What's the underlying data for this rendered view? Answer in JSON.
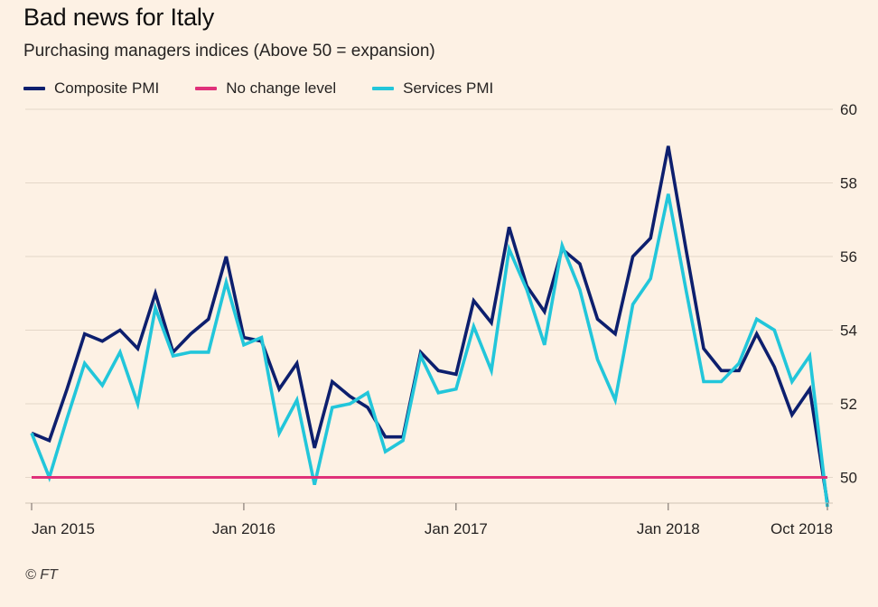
{
  "header": {
    "title": "Bad news for Italy",
    "subtitle": "Purchasing managers indices (Above 50 = expansion)"
  },
  "source": "© FT",
  "colors": {
    "background": "#fdf1e4",
    "composite": "#0d1f6e",
    "services": "#22c6da",
    "no_change": "#e0317a",
    "grid": "#e4d7c8"
  },
  "chart_data": {
    "type": "line",
    "title": "Bad news for Italy",
    "subtitle": "Purchasing managers indices (Above 50 = expansion)",
    "ylim": [
      49.3,
      60
    ],
    "y_ticks": [
      50,
      52,
      54,
      56,
      58,
      60
    ],
    "y_axis_side": "right",
    "grid": true,
    "legend_position": "top-left",
    "x_ticks": [
      {
        "index": 0,
        "label": "Jan 2015"
      },
      {
        "index": 12,
        "label": "Jan 2016"
      },
      {
        "index": 24,
        "label": "Jan 2017"
      },
      {
        "index": 36,
        "label": "Jan 2018"
      },
      {
        "index": 45,
        "label": "Oct 2018"
      }
    ],
    "x": [
      "2015-01",
      "2015-02",
      "2015-03",
      "2015-04",
      "2015-05",
      "2015-06",
      "2015-07",
      "2015-08",
      "2015-09",
      "2015-10",
      "2015-11",
      "2015-12",
      "2016-01",
      "2016-02",
      "2016-03",
      "2016-04",
      "2016-05",
      "2016-06",
      "2016-07",
      "2016-08",
      "2016-09",
      "2016-10",
      "2016-11",
      "2016-12",
      "2017-01",
      "2017-02",
      "2017-03",
      "2017-04",
      "2017-05",
      "2017-06",
      "2017-07",
      "2017-08",
      "2017-09",
      "2017-10",
      "2017-11",
      "2017-12",
      "2018-01",
      "2018-02",
      "2018-03",
      "2018-04",
      "2018-05",
      "2018-06",
      "2018-07",
      "2018-08",
      "2018-09",
      "2018-10"
    ],
    "series": [
      {
        "name": "Composite PMI",
        "color": "#0d1f6e",
        "values": [
          51.2,
          51.0,
          52.4,
          53.9,
          53.7,
          54.0,
          53.5,
          55.0,
          53.4,
          53.9,
          54.3,
          56.0,
          53.8,
          53.7,
          52.4,
          53.1,
          50.8,
          52.6,
          52.2,
          51.9,
          51.1,
          51.1,
          53.4,
          52.9,
          52.8,
          54.8,
          54.2,
          56.8,
          55.2,
          54.5,
          56.2,
          55.8,
          54.3,
          53.9,
          56.0,
          56.5,
          59.0,
          56.2,
          53.5,
          52.9,
          52.9,
          53.9,
          53.0,
          51.7,
          52.4,
          49.3
        ]
      },
      {
        "name": "No change level",
        "color": "#e0317a",
        "values": [
          50,
          50,
          50,
          50,
          50,
          50,
          50,
          50,
          50,
          50,
          50,
          50,
          50,
          50,
          50,
          50,
          50,
          50,
          50,
          50,
          50,
          50,
          50,
          50,
          50,
          50,
          50,
          50,
          50,
          50,
          50,
          50,
          50,
          50,
          50,
          50,
          50,
          50,
          50,
          50,
          50,
          50,
          50,
          50,
          50,
          50
        ]
      },
      {
        "name": "Services PMI",
        "color": "#22c6da",
        "values": [
          51.2,
          50.0,
          51.6,
          53.1,
          52.5,
          53.4,
          52.0,
          54.6,
          53.3,
          53.4,
          53.4,
          55.3,
          53.6,
          53.8,
          51.2,
          52.1,
          49.8,
          51.9,
          52.0,
          52.3,
          50.7,
          51.0,
          53.3,
          52.3,
          52.4,
          54.1,
          52.9,
          56.2,
          55.1,
          53.6,
          56.3,
          55.1,
          53.2,
          52.1,
          54.7,
          55.4,
          57.7,
          55.1,
          52.6,
          52.6,
          53.1,
          54.3,
          54.0,
          52.6,
          53.3,
          49.2
        ]
      }
    ]
  }
}
